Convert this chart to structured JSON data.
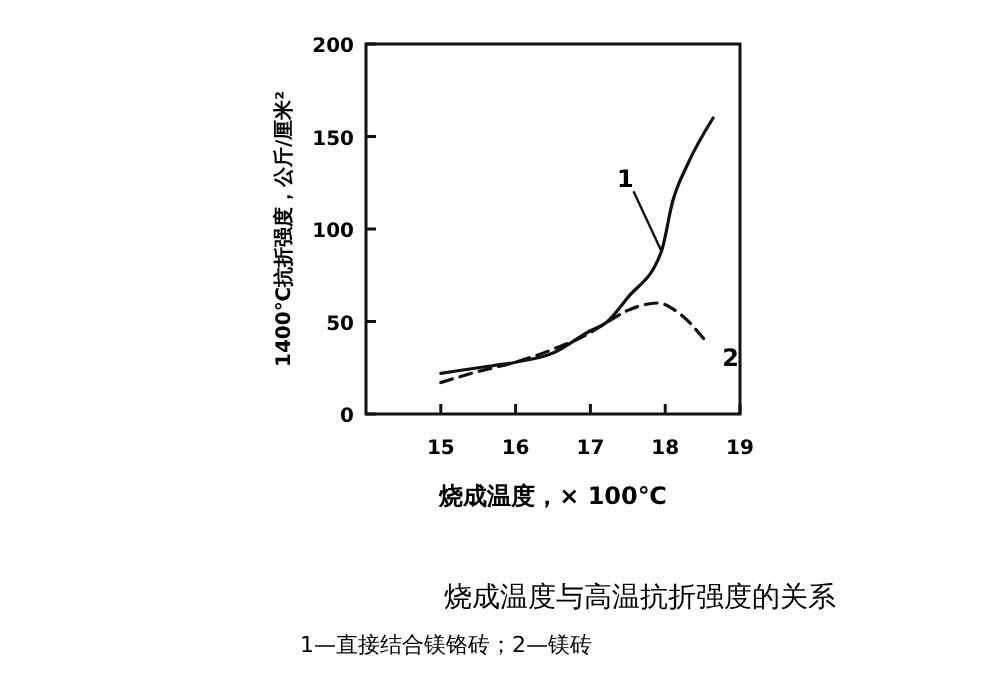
{
  "chart_data": {
    "type": "line",
    "title": "烧成温度与高温抗折强度的关系",
    "xlabel": "烧成温度，× 100℃",
    "ylabel": "1400℃抗折强度，公斤/厘米²",
    "annotations": [
      "1—直接结合镁铬砖；2—镁砖"
    ],
    "xlim": [
      14,
      19
    ],
    "xticks": [
      15,
      16,
      17,
      18,
      19
    ],
    "ylim": [
      0,
      200
    ],
    "yticks": [
      0,
      50,
      100,
      150,
      200
    ],
    "grid": false,
    "series": [
      {
        "name": "1",
        "color": "#111111",
        "line_style": "solid",
        "x": [
          15,
          15.5,
          16,
          16.5,
          17,
          17.2,
          17.5,
          17.95,
          18.1,
          18.3,
          18.64
        ],
        "values": [
          22,
          25,
          28,
          33,
          45,
          49,
          63,
          88,
          115,
          135,
          160
        ]
      },
      {
        "name": "2",
        "color": "#111111",
        "line_style": "dashed",
        "x": [
          15,
          15.5,
          16,
          16.5,
          17,
          17.2,
          17.5,
          17.9,
          18.2,
          18.55
        ],
        "values": [
          17,
          23,
          28,
          35,
          44,
          49,
          56,
          60,
          54,
          39
        ]
      }
    ]
  }
}
